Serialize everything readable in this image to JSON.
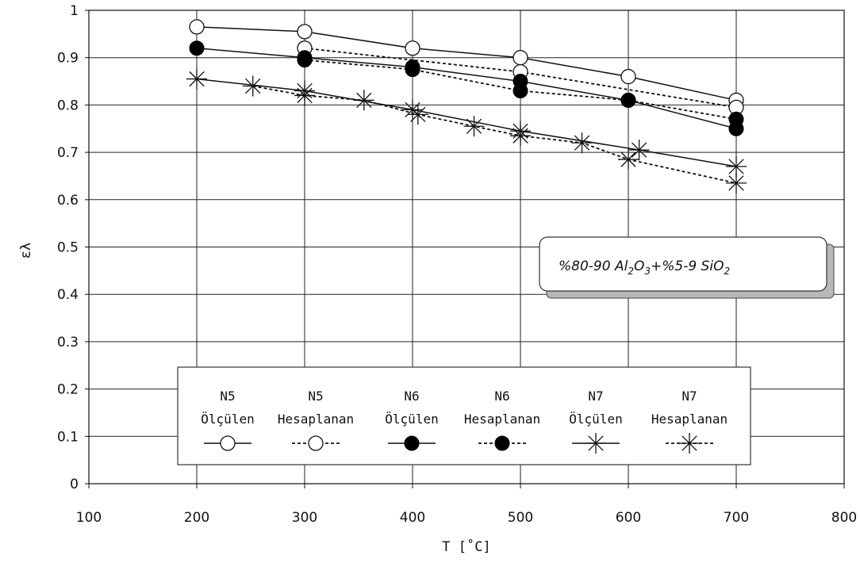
{
  "chart_data": {
    "type": "line",
    "xlabel": "T [˚C]",
    "ylabel": "ελ",
    "xlim": [
      100,
      800
    ],
    "ylim": [
      0,
      1
    ],
    "xticks": [
      100,
      200,
      300,
      400,
      500,
      600,
      700,
      800
    ],
    "yticks": [
      0,
      0.1,
      0.2,
      0.3,
      0.4,
      0.5,
      0.6,
      0.7,
      0.8,
      0.9,
      1
    ],
    "grid": true,
    "legend_position": "bottom-center",
    "annotation": {
      "main": "%80-90 Al",
      "s1": "2",
      "mid1": "O",
      "s2": "3",
      "mid2": "+%5-9 SiO",
      "s3": "2"
    },
    "series": [
      {
        "name_line1": "N5",
        "name_line2": "Ölçülen",
        "marker": "open-circle",
        "line": "solid",
        "points": [
          [
            200,
            0.965
          ],
          [
            300,
            0.955
          ],
          [
            400,
            0.92
          ],
          [
            500,
            0.9
          ],
          [
            600,
            0.86
          ],
          [
            700,
            0.81
          ]
        ]
      },
      {
        "name_line1": "N5",
        "name_line2": "Hesaplanan",
        "marker": "open-circle",
        "line": "dashed",
        "points": [
          [
            300,
            0.92
          ],
          [
            500,
            0.87
          ],
          [
            700,
            0.795
          ]
        ]
      },
      {
        "name_line1": "N6",
        "name_line2": "Ölçülen",
        "marker": "filled-circle",
        "line": "solid",
        "points": [
          [
            200,
            0.92
          ],
          [
            300,
            0.9
          ],
          [
            400,
            0.88
          ],
          [
            500,
            0.85
          ],
          [
            600,
            0.81
          ],
          [
            700,
            0.75
          ]
        ]
      },
      {
        "name_line1": "N6",
        "name_line2": "Hesaplanan",
        "marker": "filled-circle",
        "line": "dashed",
        "points": [
          [
            300,
            0.895
          ],
          [
            400,
            0.875
          ],
          [
            500,
            0.83
          ],
          [
            600,
            0.81
          ],
          [
            700,
            0.77
          ]
        ]
      },
      {
        "name_line1": "N7",
        "name_line2": "Ölçülen",
        "marker": "star",
        "line": "solid",
        "points": [
          [
            200,
            0.855
          ],
          [
            300,
            0.83
          ],
          [
            400,
            0.79
          ],
          [
            500,
            0.745
          ],
          [
            610,
            0.705
          ],
          [
            700,
            0.67
          ]
        ]
      },
      {
        "name_line1": "N7",
        "name_line2": "Hesaplanan",
        "marker": "star",
        "line": "dashed",
        "points": [
          [
            252,
            0.84
          ],
          [
            300,
            0.82
          ],
          [
            355,
            0.81
          ],
          [
            405,
            0.78
          ],
          [
            457,
            0.755
          ],
          [
            500,
            0.735
          ],
          [
            557,
            0.72
          ],
          [
            600,
            0.685
          ],
          [
            700,
            0.635
          ]
        ]
      }
    ]
  }
}
